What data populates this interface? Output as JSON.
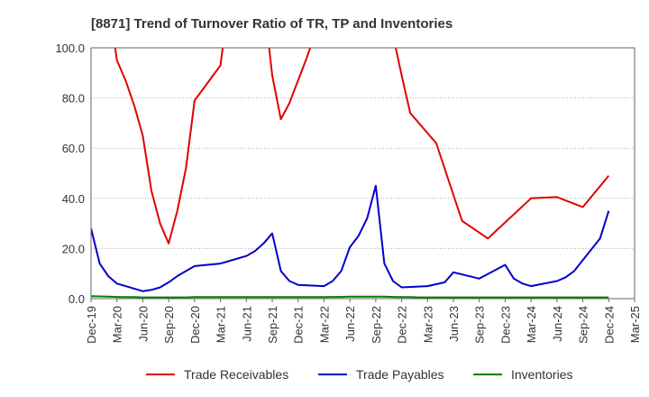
{
  "chart_data": {
    "type": "line",
    "title": "[8871]  Trend of Turnover Ratio of TR, TP and Inventories",
    "xlabel": "",
    "ylabel": "",
    "ylim": [
      0,
      100
    ],
    "yticks": [
      "0.0",
      "20.0",
      "40.0",
      "60.0",
      "80.0",
      "100.0"
    ],
    "x_tick_labels": [
      "Dec-19",
      "Mar-20",
      "Jun-20",
      "Sep-20",
      "Dec-20",
      "Mar-21",
      "Jun-21",
      "Sep-21",
      "Dec-21",
      "Mar-22",
      "Jun-22",
      "Sep-22",
      "Dec-22",
      "Mar-23",
      "Jun-23",
      "Sep-23",
      "Dec-23",
      "Mar-24",
      "Jun-24",
      "Sep-24",
      "Dec-24",
      "Mar-25"
    ],
    "x": [
      "Dec-19",
      "Jan-20",
      "Feb-20",
      "Mar-20",
      "Apr-20",
      "May-20",
      "Jun-20",
      "Jul-20",
      "Aug-20",
      "Sep-20",
      "Oct-20",
      "Nov-20",
      "Dec-20",
      "Jan-21",
      "Feb-21",
      "Mar-21",
      "Apr-21",
      "May-21",
      "Jun-21",
      "Jul-21",
      "Aug-21",
      "Sep-21",
      "Oct-21",
      "Nov-21",
      "Dec-21",
      "Jan-22",
      "Feb-22",
      "Mar-22",
      "Apr-22",
      "May-22",
      "Jun-22",
      "Jul-22",
      "Aug-22",
      "Sep-22",
      "Oct-22",
      "Nov-22",
      "Dec-22",
      "Jan-23",
      "Feb-23",
      "Mar-23",
      "Apr-23",
      "May-23",
      "Jun-23",
      "Jul-23",
      "Aug-23",
      "Sep-23",
      "Oct-23",
      "Nov-23",
      "Dec-23",
      "Jan-24",
      "Feb-24",
      "Mar-24",
      "Apr-24",
      "May-24",
      "Jun-24",
      "Jul-24",
      "Aug-24",
      "Sep-24",
      "Oct-24",
      "Nov-24",
      "Dec-24"
    ],
    "series": [
      {
        "name": "Trade Receivables",
        "color": "#e00000",
        "values": [
          null,
          null,
          120,
          95,
          87,
          77,
          65,
          43,
          30,
          22,
          35,
          52,
          79,
          null,
          null,
          93,
          120,
          null,
          null,
          null,
          120,
          89,
          71.5,
          78,
          87,
          96,
          106,
          null,
          null,
          null,
          null,
          null,
          null,
          null,
          null,
          105,
          89,
          74,
          null,
          null,
          62,
          null,
          null,
          31,
          null,
          null,
          24,
          null,
          null,
          null,
          null,
          40,
          null,
          null,
          40.5,
          null,
          null,
          36.5,
          null,
          null,
          49
        ]
      },
      {
        "name": "Trade Payables",
        "color": "#0000cc",
        "values": [
          28,
          14,
          9,
          6,
          5,
          4,
          3,
          3.5,
          4.5,
          6.5,
          9,
          11,
          13,
          null,
          null,
          14,
          null,
          null,
          17,
          19,
          22,
          26,
          11,
          7,
          5.5,
          null,
          null,
          5,
          7,
          11,
          20.5,
          25,
          32,
          45,
          14,
          7,
          4.5,
          null,
          null,
          5,
          null,
          6.5,
          10.5,
          null,
          null,
          8,
          null,
          null,
          13.5,
          8,
          6,
          5,
          null,
          null,
          7,
          8.5,
          11,
          null,
          null,
          24,
          35
        ]
      },
      {
        "name": "Inventories",
        "color": "#008000",
        "values": [
          1,
          0.9,
          0.8,
          0.7,
          0.6,
          0.6,
          0.5,
          0.5,
          0.5,
          0.5,
          0.5,
          0.5,
          0.6,
          0.6,
          0.6,
          0.6,
          0.6,
          0.6,
          0.6,
          0.6,
          0.6,
          0.6,
          0.6,
          0.6,
          0.6,
          0.6,
          0.6,
          0.6,
          0.7,
          0.7,
          0.8,
          0.8,
          0.8,
          0.8,
          0.8,
          0.7,
          0.6,
          0.6,
          0.5,
          0.5,
          0.5,
          0.5,
          0.5,
          0.5,
          0.5,
          0.5,
          0.5,
          0.5,
          0.5,
          0.5,
          0.5,
          0.5,
          0.5,
          0.5,
          0.5,
          0.5,
          0.5,
          0.5,
          0.5,
          0.5,
          0.5
        ]
      }
    ],
    "grid": "horizontal-dotted",
    "legend": "bottom"
  }
}
